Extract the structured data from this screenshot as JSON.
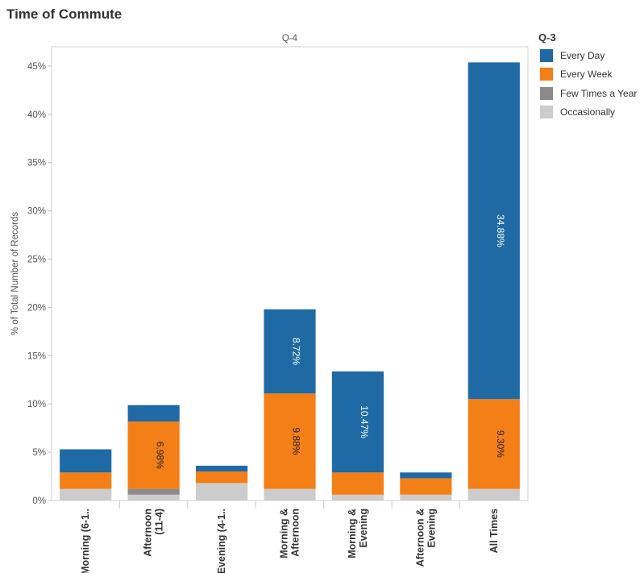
{
  "title": "Time of Commute",
  "legend": {
    "title": "Q-3",
    "items": [
      {
        "label": "Every Day",
        "color": "#1f6aa5"
      },
      {
        "label": "Every Week",
        "color": "#f47f17"
      },
      {
        "label": "Few Times a Year",
        "color": "#8a8a8a"
      },
      {
        "label": "Occasionally",
        "color": "#cccccc"
      }
    ]
  },
  "chart_data": {
    "type": "bar",
    "stacked": true,
    "facet_label": "Q-4",
    "ylabel": "% of Total Number of Records",
    "xlabel": "",
    "ylim": [
      0,
      47
    ],
    "yticks": [
      0,
      5,
      10,
      15,
      20,
      25,
      30,
      35,
      40,
      45
    ],
    "ytick_labels": [
      "0%",
      "5%",
      "10%",
      "15%",
      "20%",
      "25%",
      "30%",
      "35%",
      "40%",
      "45%"
    ],
    "categories": [
      "Morning (6-1..",
      "Afternoon (11-4)",
      "Evening (4-1..",
      "Morning & Afternoon",
      "Morning & Evening",
      "Afternoon & Evening",
      "All Times"
    ],
    "category_lines": [
      [
        "Morning (6-1.."
      ],
      [
        "Afternoon",
        "(11-4)"
      ],
      [
        "Evening (4-1.."
      ],
      [
        "Morning &",
        "Afternoon"
      ],
      [
        "Morning &",
        "Evening"
      ],
      [
        "Afternoon &",
        "Evening"
      ],
      [
        "All Times"
      ]
    ],
    "series": [
      {
        "name": "Occasionally",
        "color": "#cccccc",
        "values": [
          1.2,
          0.6,
          1.8,
          1.2,
          0.6,
          0.6,
          1.2
        ]
      },
      {
        "name": "Few Times a Year",
        "color": "#8a8a8a",
        "values": [
          0,
          0.6,
          0,
          0,
          0,
          0,
          0
        ]
      },
      {
        "name": "Every Week",
        "color": "#f47f17",
        "values": [
          1.7,
          6.98,
          1.2,
          9.88,
          2.3,
          1.7,
          9.3
        ]
      },
      {
        "name": "Every Day",
        "color": "#1f6aa5",
        "values": [
          2.4,
          1.7,
          0.6,
          8.72,
          10.47,
          0.6,
          34.88
        ]
      }
    ],
    "data_labels": [
      {
        "category_index": 1,
        "series": "Every Week",
        "text": "6.98%"
      },
      {
        "category_index": 3,
        "series": "Every Week",
        "text": "9.88%"
      },
      {
        "category_index": 3,
        "series": "Every Day",
        "text": "8.72%"
      },
      {
        "category_index": 4,
        "series": "Every Day",
        "text": "10.47%"
      },
      {
        "category_index": 6,
        "series": "Every Week",
        "text": "9.30%"
      },
      {
        "category_index": 6,
        "series": "Every Day",
        "text": "34.88%"
      }
    ],
    "grid": false,
    "legend_position": "right"
  }
}
